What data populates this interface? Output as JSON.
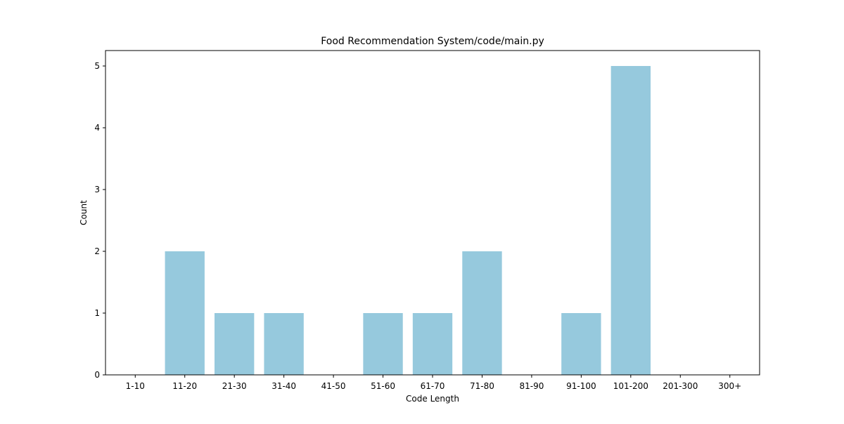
{
  "chart_data": {
    "type": "bar",
    "title": "Food Recommendation System/code/main.py",
    "xlabel": "Code Length",
    "ylabel": "Count",
    "categories": [
      "1-10",
      "11-20",
      "21-30",
      "31-40",
      "41-50",
      "51-60",
      "61-70",
      "71-80",
      "81-90",
      "91-100",
      "101-200",
      "201-300",
      "300+"
    ],
    "values": [
      0,
      2,
      1,
      1,
      0,
      1,
      1,
      2,
      0,
      1,
      5,
      0,
      0
    ],
    "ylim": [
      0,
      5.25
    ],
    "yticks": [
      0,
      1,
      2,
      3,
      4,
      5
    ],
    "grid": false,
    "legend": "none",
    "bar_color": "#96c9dd"
  }
}
